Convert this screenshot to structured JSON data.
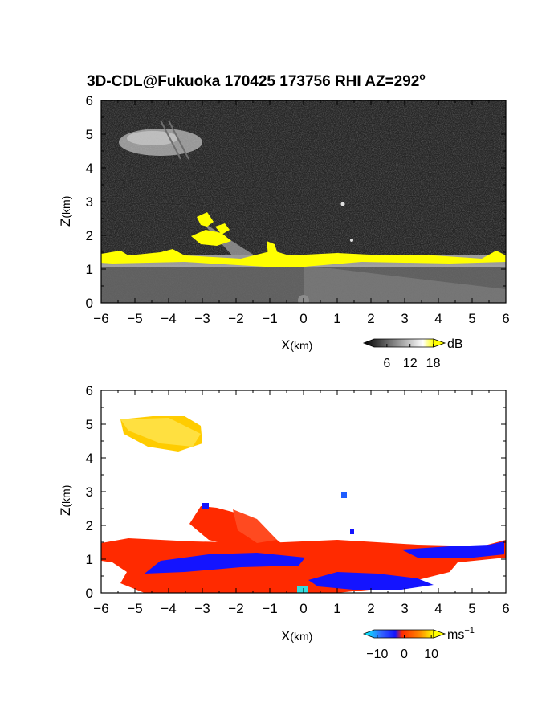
{
  "title_main": "3D-CDL@Fukuoka 170425 173756 RHI AZ=292",
  "title_deg": "o",
  "chart_data": [
    {
      "type": "heatmap",
      "name": "backscatter-panel",
      "xlabel_main": "X",
      "xlabel_unit": "(km)",
      "ylabel_main": "Z",
      "ylabel_unit": "(km)",
      "xlim": [
        -6,
        6
      ],
      "ylim": [
        0,
        6
      ],
      "x_ticks": [
        "−6",
        "−5",
        "−4",
        "−3",
        "−2",
        "−1",
        "0",
        "1",
        "2",
        "3",
        "4",
        "5",
        "6"
      ],
      "y_ticks": [
        "0",
        "1",
        "2",
        "3",
        "4",
        "5",
        "6"
      ],
      "colorbar": {
        "unit": "dB",
        "ticks": [
          "6",
          "12",
          "18"
        ],
        "range": [
          0,
          21
        ]
      },
      "colors": {
        "background": "#262626",
        "cloud": "#bdbdbd",
        "strong": "#ffff00"
      }
    },
    {
      "type": "heatmap",
      "name": "velocity-panel",
      "xlabel_main": "X",
      "xlabel_unit": "(km)",
      "ylabel_main": "Z",
      "ylabel_unit": "(km)",
      "xlim": [
        -6,
        6
      ],
      "ylim": [
        0,
        6
      ],
      "x_ticks": [
        "−6",
        "−5",
        "−4",
        "−3",
        "−2",
        "−1",
        "0",
        "1",
        "2",
        "3",
        "4",
        "5",
        "6"
      ],
      "y_ticks": [
        "0",
        "1",
        "2",
        "3",
        "4",
        "5",
        "6"
      ],
      "colorbar": {
        "unit_main": "ms",
        "unit_exp": "−1",
        "ticks": [
          "−10",
          "0",
          "10"
        ],
        "range": [
          -15,
          15
        ]
      },
      "colors": {
        "positive": "#ff2a00",
        "negative": "#1414ff",
        "high": "#ffcc00",
        "zero": "#33dddd"
      }
    }
  ]
}
